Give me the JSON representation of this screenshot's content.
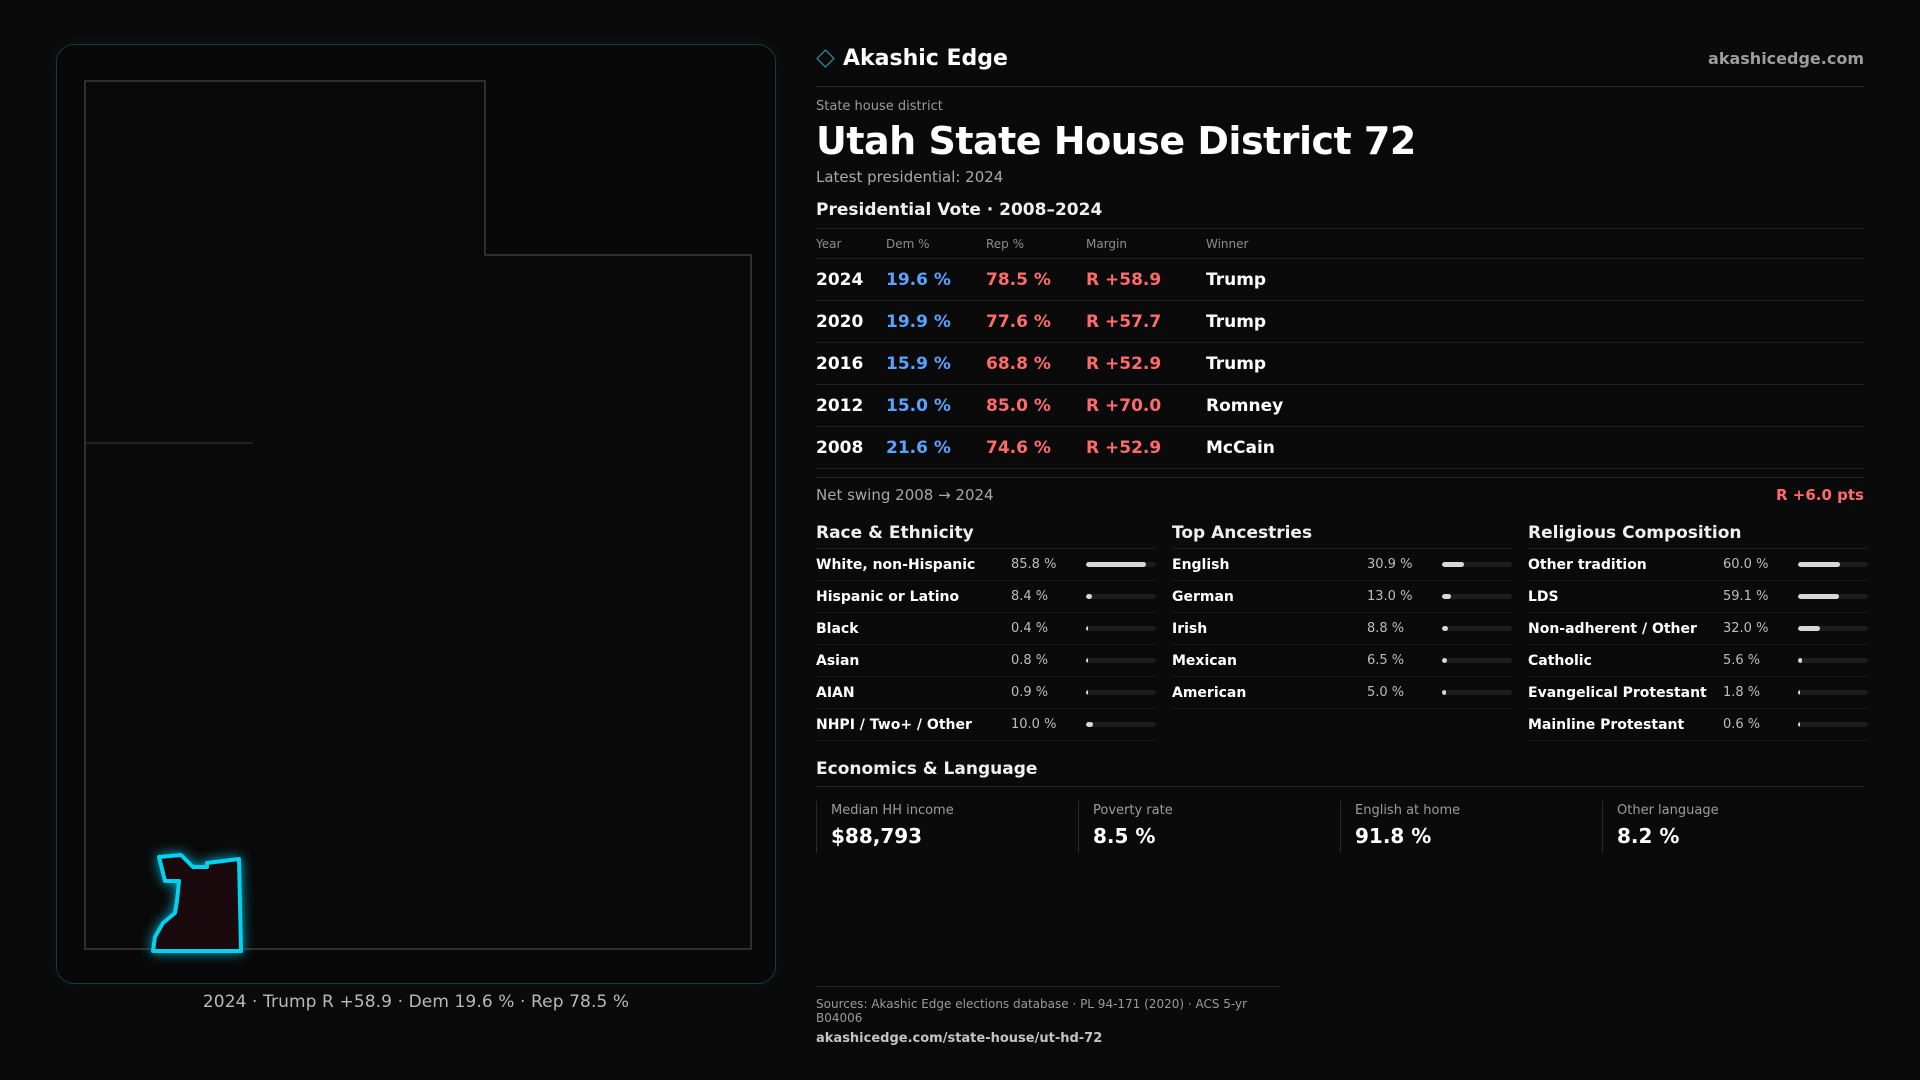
{
  "brand": {
    "name": "Akashic Edge",
    "site": "akashicedge.com",
    "accent": "#1aa9c0"
  },
  "header": {
    "kicker": "State house district",
    "title": "Utah State House District 72",
    "subtitle": "Latest presidential: 2024"
  },
  "map": {
    "caption": "2024 · Trump R +58.9 · Dem 19.6 % · Rep 78.5 %",
    "district_color": "#00d2f0",
    "district_fill": "#1a0a0e"
  },
  "vote": {
    "title": "Presidential Vote · 2008–2024",
    "headers": {
      "year": "Year",
      "dem": "Dem %",
      "rep": "Rep %",
      "margin": "Margin",
      "winner": "Winner"
    },
    "rows": [
      {
        "year": "2024",
        "dem": "19.6 %",
        "rep": "78.5 %",
        "margin": "R +58.9",
        "winner": "Trump"
      },
      {
        "year": "2020",
        "dem": "19.9 %",
        "rep": "77.6 %",
        "margin": "R +57.7",
        "winner": "Trump"
      },
      {
        "year": "2016",
        "dem": "15.9 %",
        "rep": "68.8 %",
        "margin": "R +52.9",
        "winner": "Trump"
      },
      {
        "year": "2012",
        "dem": "15.0 %",
        "rep": "85.0 %",
        "margin": "R +70.0",
        "winner": "Romney"
      },
      {
        "year": "2008",
        "dem": "21.6 %",
        "rep": "74.6 %",
        "margin": "R +52.9",
        "winner": "McCain"
      }
    ],
    "dem_color": "#5aa2ff",
    "rep_color": "#ff6b6b",
    "swing_label": "Net swing 2008 → 2024",
    "swing_value": "R +6.0 pts"
  },
  "race": {
    "title": "Race & Ethnicity",
    "rows": [
      {
        "label": "White, non-Hispanic",
        "value": "85.8 %",
        "frac": 0.858
      },
      {
        "label": "Hispanic or Latino",
        "value": "8.4 %",
        "frac": 0.084
      },
      {
        "label": "Black",
        "value": "0.4 %",
        "frac": 0.004
      },
      {
        "label": "Asian",
        "value": "0.8 %",
        "frac": 0.008
      },
      {
        "label": "AIAN",
        "value": "0.9 %",
        "frac": 0.009
      },
      {
        "label": "NHPI / Two+ / Other",
        "value": "10.0 %",
        "frac": 0.1
      }
    ]
  },
  "ancestry": {
    "title": "Top Ancestries",
    "rows": [
      {
        "label": "English",
        "value": "30.9 %",
        "frac": 0.309
      },
      {
        "label": "German",
        "value": "13.0 %",
        "frac": 0.13
      },
      {
        "label": "Irish",
        "value": "8.8 %",
        "frac": 0.088
      },
      {
        "label": "Mexican",
        "value": "6.5 %",
        "frac": 0.065
      },
      {
        "label": "American",
        "value": "5.0 %",
        "frac": 0.05
      }
    ]
  },
  "religion": {
    "title": "Religious Composition",
    "rows": [
      {
        "label": "Other tradition",
        "value": "60.0 %",
        "frac": 0.6
      },
      {
        "label": "LDS",
        "value": "59.1 %",
        "frac": 0.591
      },
      {
        "label": "Non-adherent / Other",
        "value": "32.0 %",
        "frac": 0.32
      },
      {
        "label": "Catholic",
        "value": "5.6 %",
        "frac": 0.056
      },
      {
        "label": "Evangelical Protestant",
        "value": "1.8 %",
        "frac": 0.018
      },
      {
        "label": "Mainline Protestant",
        "value": "0.6 %",
        "frac": 0.006
      }
    ]
  },
  "econ": {
    "title": "Economics & Language",
    "cards": [
      {
        "label": "Median HH income",
        "value": "$88,793"
      },
      {
        "label": "Poverty rate",
        "value": "8.5 %"
      },
      {
        "label": "English at home",
        "value": "91.8 %"
      },
      {
        "label": "Other language",
        "value": "8.2 %"
      }
    ]
  },
  "sources": {
    "text": "Sources: Akashic Edge elections database · PL 94-171 (2020) · ACS 5-yr B04006",
    "url": "akashicedge.com/state-house/ut-hd-72"
  }
}
